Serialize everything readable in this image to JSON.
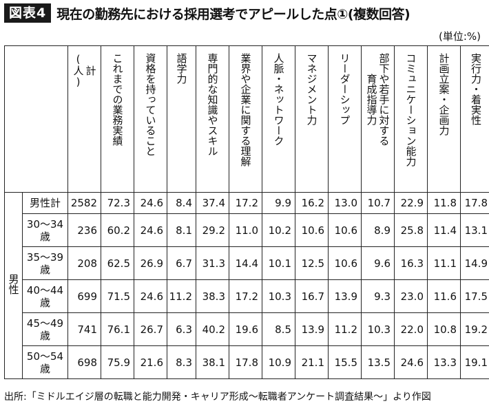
{
  "badge": "図表4",
  "title": "現在の勤務先における採用選考でアピールした点①(複数回答)",
  "unit": "(単位:%)",
  "group_label": "男性",
  "columns": [
    "計\n(人)",
    "これまでの業務実績",
    "資格を持っていること",
    "語学力",
    "専門的な知識やスキル",
    "業界や企業に関する理解",
    "人脈・ネットワーク",
    "マネジメント力",
    "リーダーシップ",
    "部下や若手に対する\n育成指導力",
    "コミュニケーション能力",
    "計画立案・企画力",
    "実行力・着実性"
  ],
  "rows": [
    {
      "label": "男性計",
      "values": [
        "2582",
        "72.3",
        "24.6",
        "8.4",
        "37.4",
        "17.2",
        "9.9",
        "16.2",
        "13.0",
        "10.7",
        "22.9",
        "11.8",
        "17.8"
      ]
    },
    {
      "label": "30～34\n歳",
      "values": [
        "236",
        "60.2",
        "24.6",
        "8.1",
        "29.2",
        "11.0",
        "10.2",
        "10.6",
        "10.6",
        "8.9",
        "25.8",
        "11.4",
        "13.1"
      ]
    },
    {
      "label": "35～39\n歳",
      "values": [
        "208",
        "62.5",
        "26.9",
        "6.7",
        "31.3",
        "14.4",
        "10.1",
        "12.5",
        "10.6",
        "9.6",
        "16.3",
        "11.1",
        "14.9"
      ]
    },
    {
      "label": "40～44\n歳",
      "values": [
        "699",
        "71.5",
        "24.6",
        "11.2",
        "38.3",
        "17.2",
        "10.3",
        "16.7",
        "13.9",
        "9.3",
        "23.0",
        "11.6",
        "17.5"
      ]
    },
    {
      "label": "45～49\n歳",
      "values": [
        "741",
        "76.1",
        "26.7",
        "6.3",
        "40.2",
        "19.6",
        "8.5",
        "13.9",
        "11.2",
        "10.3",
        "22.0",
        "10.8",
        "19.2"
      ]
    },
    {
      "label": "50～54\n歳",
      "values": [
        "698",
        "75.9",
        "21.6",
        "8.3",
        "38.1",
        "17.8",
        "10.9",
        "21.1",
        "15.5",
        "13.5",
        "24.6",
        "13.3",
        "19.1"
      ]
    }
  ],
  "footnote": "出所:「ミドルエイジ層の転職と能力開発・キャリア形成～転職者アンケート調査結果～」より作図"
}
